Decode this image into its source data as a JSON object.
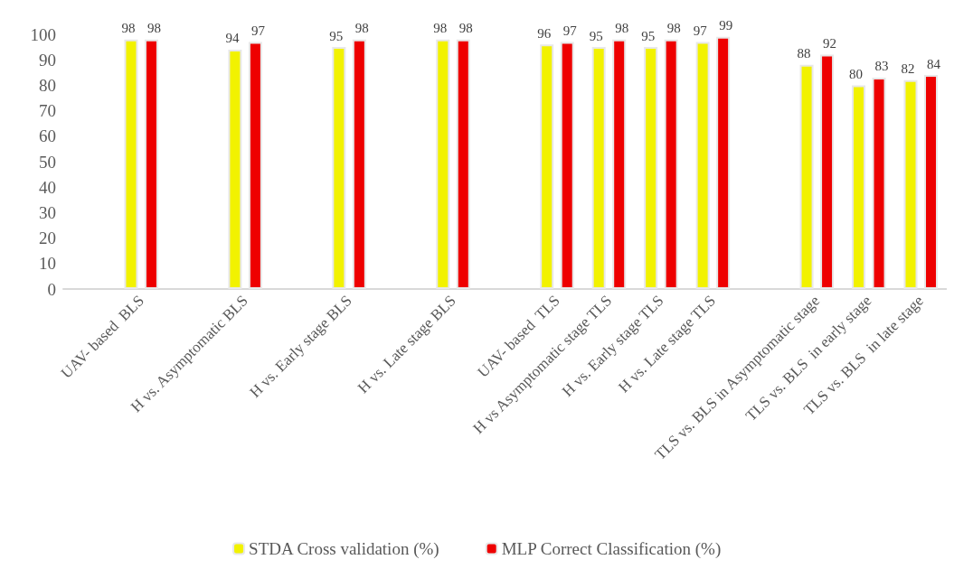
{
  "chart_data": {
    "type": "bar",
    "categories": [
      null,
      "UAV- based  BLS",
      null,
      "H vs. Asymptomatic BLS",
      null,
      "H vs. Early stage BLS",
      null,
      "H vs. Late stage BLS",
      null,
      "UAV- based  TLS",
      "H vs Asymptomatic stage TLS",
      "H vs. Early stage TLS",
      "H vs. Late stage TLS",
      null,
      "TLS vs. BLS in Asymptomatic stage",
      "TLS vs. BLS  in early stage",
      "TLS vs. BLS  in late stage"
    ],
    "series": [
      {
        "name": "STDA Cross validation (%)",
        "color": "#f2f200",
        "values": [
          null,
          98,
          null,
          94,
          null,
          95,
          null,
          98,
          null,
          96,
          95,
          95,
          97,
          null,
          88,
          80,
          82
        ]
      },
      {
        "name": "MLP Correct Classification (%)",
        "color": "#ee0000",
        "values": [
          null,
          98,
          null,
          97,
          null,
          98,
          null,
          98,
          null,
          97,
          98,
          98,
          99,
          null,
          92,
          83,
          84
        ]
      }
    ],
    "ylim": [
      0,
      100
    ],
    "yticks": [
      0,
      10,
      20,
      30,
      40,
      50,
      60,
      70,
      80,
      90,
      100
    ],
    "grid": false,
    "legend": "bottom",
    "data_labels": true
  }
}
